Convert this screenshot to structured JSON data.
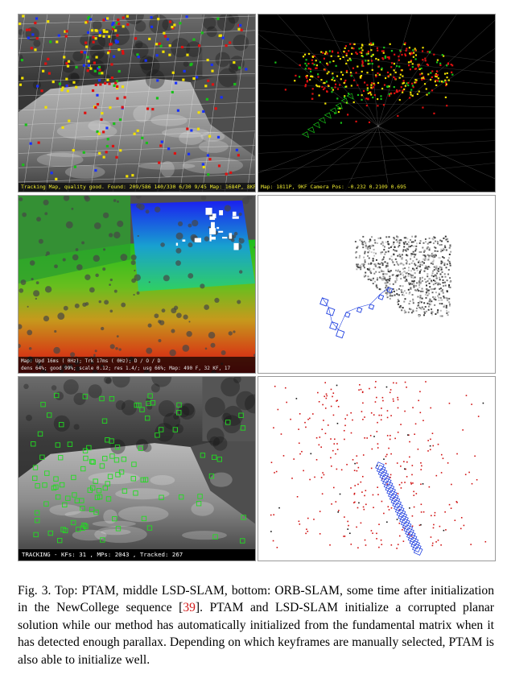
{
  "figure": {
    "panels": {
      "ptam_frame": {
        "hud": "Tracking Map, quality good. Found: 209/586 140/330 6/30 9/45 Map: 1684P, 8KF Add"
      },
      "ptam_map": {
        "hud": "Map: 1811P, 9KF   Camera Pos: -0.232 0.2109 0.695"
      },
      "lsd_frame": {
        "hud_line1": "Map: Upd  16ms ( 0Hz); Trk  17ms ( 0Hz); D / O / D",
        "hud_line2": "dens 64%; good 99%; scale 0.12; res 1.4/; usg 66%; Map: 490 F, 32 KF, 17"
      },
      "lsd_map": {},
      "orb_frame": {
        "hud": "TRACKING  - KFs: 31 , MPs: 2043 , Tracked: 267"
      },
      "orb_map": {}
    },
    "colors": {
      "ptam_red": "#e01010",
      "ptam_yellow": "#f0e000",
      "ptam_green": "#18c018",
      "ptam_blue": "#1830ff",
      "orb_feature": "#22dd22",
      "orb_map_point": "#d01010",
      "keyframe_blue": "#2040e0"
    },
    "caption": {
      "before_ref": "Fig. 3.   Top: PTAM, middle LSD-SLAM, bottom: ORB-SLAM, some time after initialization in the NewCollege sequence [",
      "ref": "39",
      "after_ref": "]. PTAM and LSD-SLAM initialize a corrupted planar solution while our method has automatically initialized from the fundamental matrix when it has detected enough parallax. Depending on which keyframes are manually selected, PTAM is also able to initialize well."
    }
  }
}
